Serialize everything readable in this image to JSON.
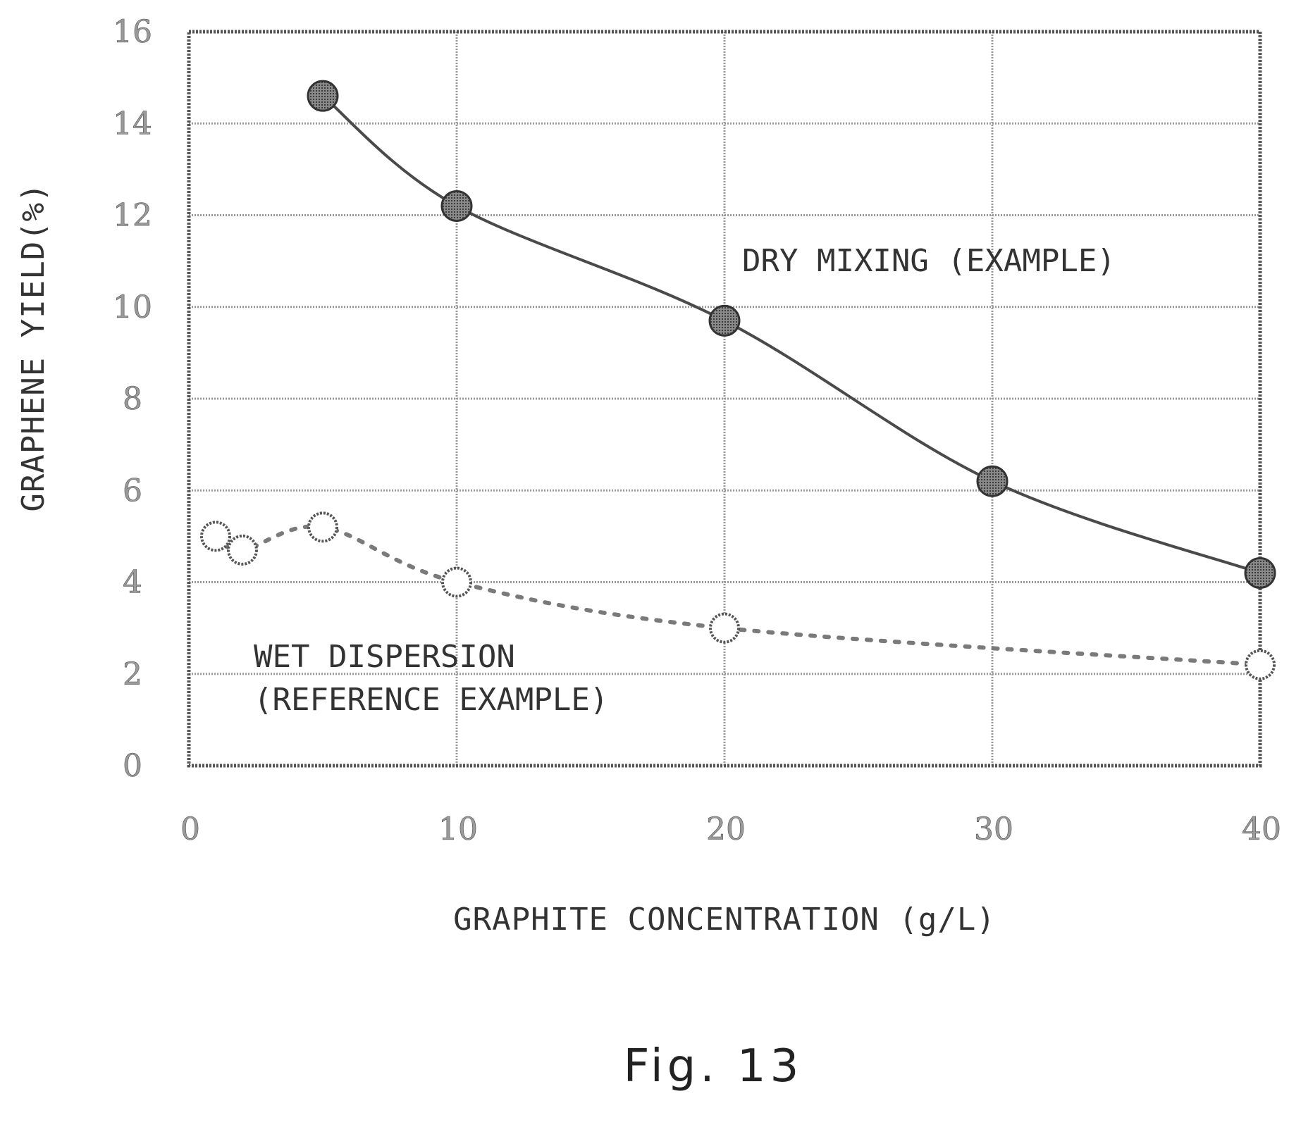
{
  "chart_data": {
    "type": "line",
    "xlabel": "GRAPHITE CONCENTRATION (g/L)",
    "ylabel": "GRAPHENE YIELD(%)",
    "xlim": [
      0,
      40
    ],
    "ylim": [
      0,
      16
    ],
    "x_ticks": [
      "0",
      "10",
      "20",
      "30",
      "40"
    ],
    "y_ticks": [
      "0",
      "2",
      "4",
      "6",
      "8",
      "10",
      "12",
      "14",
      "16"
    ],
    "grid": true,
    "annotations": {
      "dry": "DRY MIXING (EXAMPLE)",
      "wet_line1": "WET DISPERSION",
      "wet_line2": "(REFERENCE EXAMPLE)"
    },
    "series": [
      {
        "marker": "filled-circle",
        "line": "solid",
        "color": "#4a4a4a",
        "points": [
          [
            5,
            14.6
          ],
          [
            10,
            12.2
          ],
          [
            20,
            9.7
          ],
          [
            30,
            6.2
          ],
          [
            40,
            4.2
          ]
        ]
      },
      {
        "marker": "open-circle",
        "line": "dotted",
        "color": "#7a7a7a",
        "points": [
          [
            1,
            5.0
          ],
          [
            2,
            4.7
          ],
          [
            5,
            5.2
          ],
          [
            10,
            4.0
          ],
          [
            20,
            3.0
          ],
          [
            40,
            2.2
          ]
        ]
      }
    ]
  },
  "caption": "Fig. 13"
}
